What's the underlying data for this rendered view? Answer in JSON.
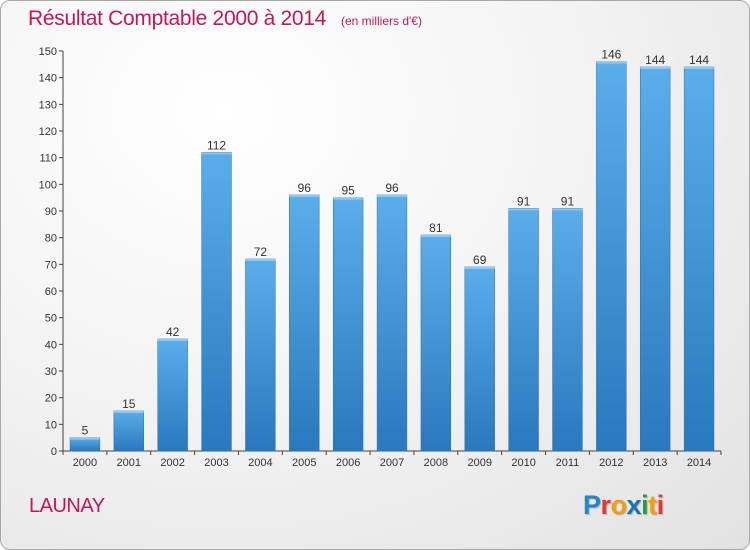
{
  "chart_data": {
    "type": "bar",
    "title": "Résultat Comptable 2000 à 2014",
    "subtitle": "(en milliers d'€)",
    "categories": [
      "2000",
      "2001",
      "2002",
      "2003",
      "2004",
      "2005",
      "2006",
      "2007",
      "2008",
      "2009",
      "2010",
      "2011",
      "2012",
      "2013",
      "2014"
    ],
    "values": [
      5,
      15,
      42,
      112,
      72,
      96,
      95,
      96,
      81,
      69,
      91,
      91,
      146,
      144,
      144
    ],
    "ylim": [
      0,
      150
    ],
    "yticks": [
      0,
      10,
      20,
      30,
      40,
      50,
      60,
      70,
      80,
      90,
      100,
      110,
      120,
      130,
      140,
      150
    ],
    "grid": false,
    "bar_color": "#3a8fd6",
    "xlabel": "",
    "ylabel": ""
  },
  "location": "LAUNAY",
  "logo": {
    "letters": [
      "P",
      "r",
      "o",
      "x",
      "i",
      "t",
      "i"
    ],
    "colors": [
      "#1e88c8",
      "#e53935",
      "#f2a10d",
      "#1a73b8",
      "#2e9b3a",
      "#f2a10d",
      "#e53935"
    ]
  }
}
